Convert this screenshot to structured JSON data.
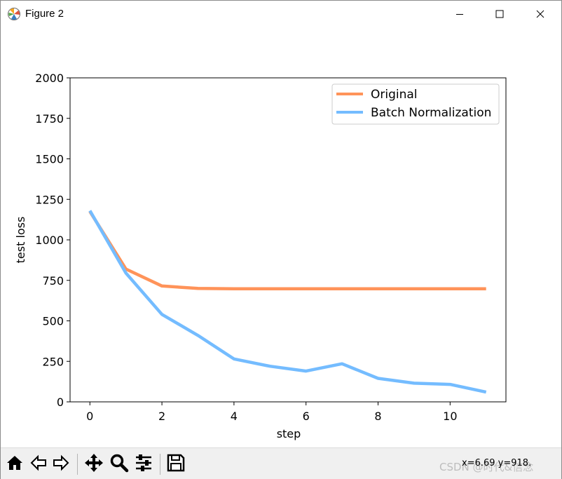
{
  "window": {
    "title": "Figure 2",
    "icons": {
      "app": "matplotlib-logo-icon",
      "minimize": "minimize-icon",
      "maximize": "maximize-icon",
      "close": "close-icon"
    }
  },
  "toolbar": {
    "buttons": [
      {
        "name": "home-button",
        "icon": "home-icon"
      },
      {
        "name": "back-button",
        "icon": "arrow-left-icon"
      },
      {
        "name": "forward-button",
        "icon": "arrow-right-icon"
      },
      {
        "name": "pan-button",
        "icon": "move-icon"
      },
      {
        "name": "zoom-button",
        "icon": "magnifier-icon"
      },
      {
        "name": "configure-subplots-button",
        "icon": "sliders-icon"
      },
      {
        "name": "save-button",
        "icon": "floppy-disk-icon"
      }
    ],
    "coords": "x=6.69  y=918.",
    "watermark": "CSDN @时代&信念"
  },
  "chart_data": {
    "type": "line",
    "xlabel": "step",
    "ylabel": "test loss",
    "xlim": [
      -0.55,
      11.55
    ],
    "ylim": [
      0,
      2000
    ],
    "xticks": [
      0,
      2,
      4,
      6,
      8,
      10
    ],
    "yticks": [
      0,
      250,
      500,
      750,
      1000,
      1250,
      1500,
      1750,
      2000
    ],
    "x": [
      0,
      1,
      2,
      3,
      4,
      5,
      6,
      7,
      8,
      9,
      10,
      11
    ],
    "series": [
      {
        "name": "Original",
        "color": "#ff9359",
        "values": [
          1175,
          820,
          715,
          700,
          698,
          698,
          698,
          698,
          698,
          698,
          698,
          698
        ]
      },
      {
        "name": "Batch Normalization",
        "color": "#74bcff",
        "values": [
          1180,
          795,
          540,
          410,
          265,
          220,
          190,
          235,
          145,
          115,
          108,
          60
        ]
      }
    ],
    "legend": "top-right",
    "grid": false
  }
}
